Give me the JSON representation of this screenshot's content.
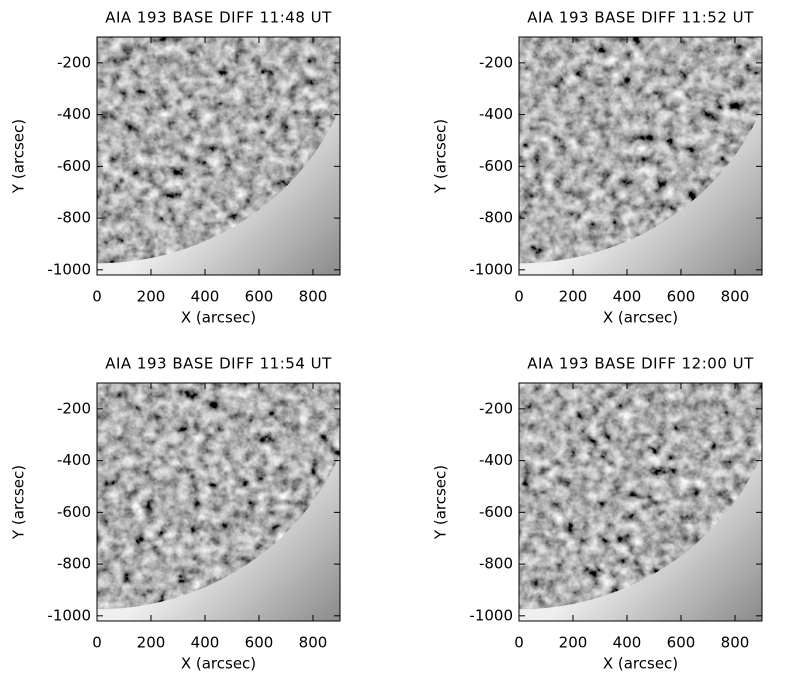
{
  "chart_data": [
    {
      "type": "image",
      "title": "AIA 193 BASE DIFF 11:48 UT",
      "xlabel": "X (arcsec)",
      "ylabel": "Y (arcsec)",
      "xlim": [
        0,
        900
      ],
      "ylim": [
        -1020,
        -100
      ],
      "xticks": [
        0,
        200,
        400,
        600,
        800
      ],
      "yticks": [
        -1000,
        -800,
        -600,
        -400,
        -200
      ]
    },
    {
      "type": "image",
      "title": "AIA 193 BASE DIFF 11:52 UT",
      "xlabel": "X (arcsec)",
      "ylabel": "Y (arcsec)",
      "xlim": [
        0,
        900
      ],
      "ylim": [
        -1020,
        -100
      ],
      "xticks": [
        0,
        200,
        400,
        600,
        800
      ],
      "yticks": [
        -1000,
        -800,
        -600,
        -400,
        -200
      ]
    },
    {
      "type": "image",
      "title": "AIA 193 BASE DIFF 11:54 UT",
      "xlabel": "X (arcsec)",
      "ylabel": "Y (arcsec)",
      "xlim": [
        0,
        900
      ],
      "ylim": [
        -1020,
        -100
      ],
      "xticks": [
        0,
        200,
        400,
        600,
        800
      ],
      "yticks": [
        -1000,
        -800,
        -600,
        -400,
        -200
      ]
    },
    {
      "type": "image",
      "title": "AIA 193 BASE DIFF 12:00 UT",
      "xlabel": "X (arcsec)",
      "ylabel": "Y (arcsec)",
      "xlim": [
        0,
        900
      ],
      "ylim": [
        -1020,
        -100
      ],
      "xticks": [
        0,
        200,
        400,
        600,
        800
      ],
      "yticks": [
        -1000,
        -800,
        -600,
        -400,
        -200
      ]
    }
  ]
}
